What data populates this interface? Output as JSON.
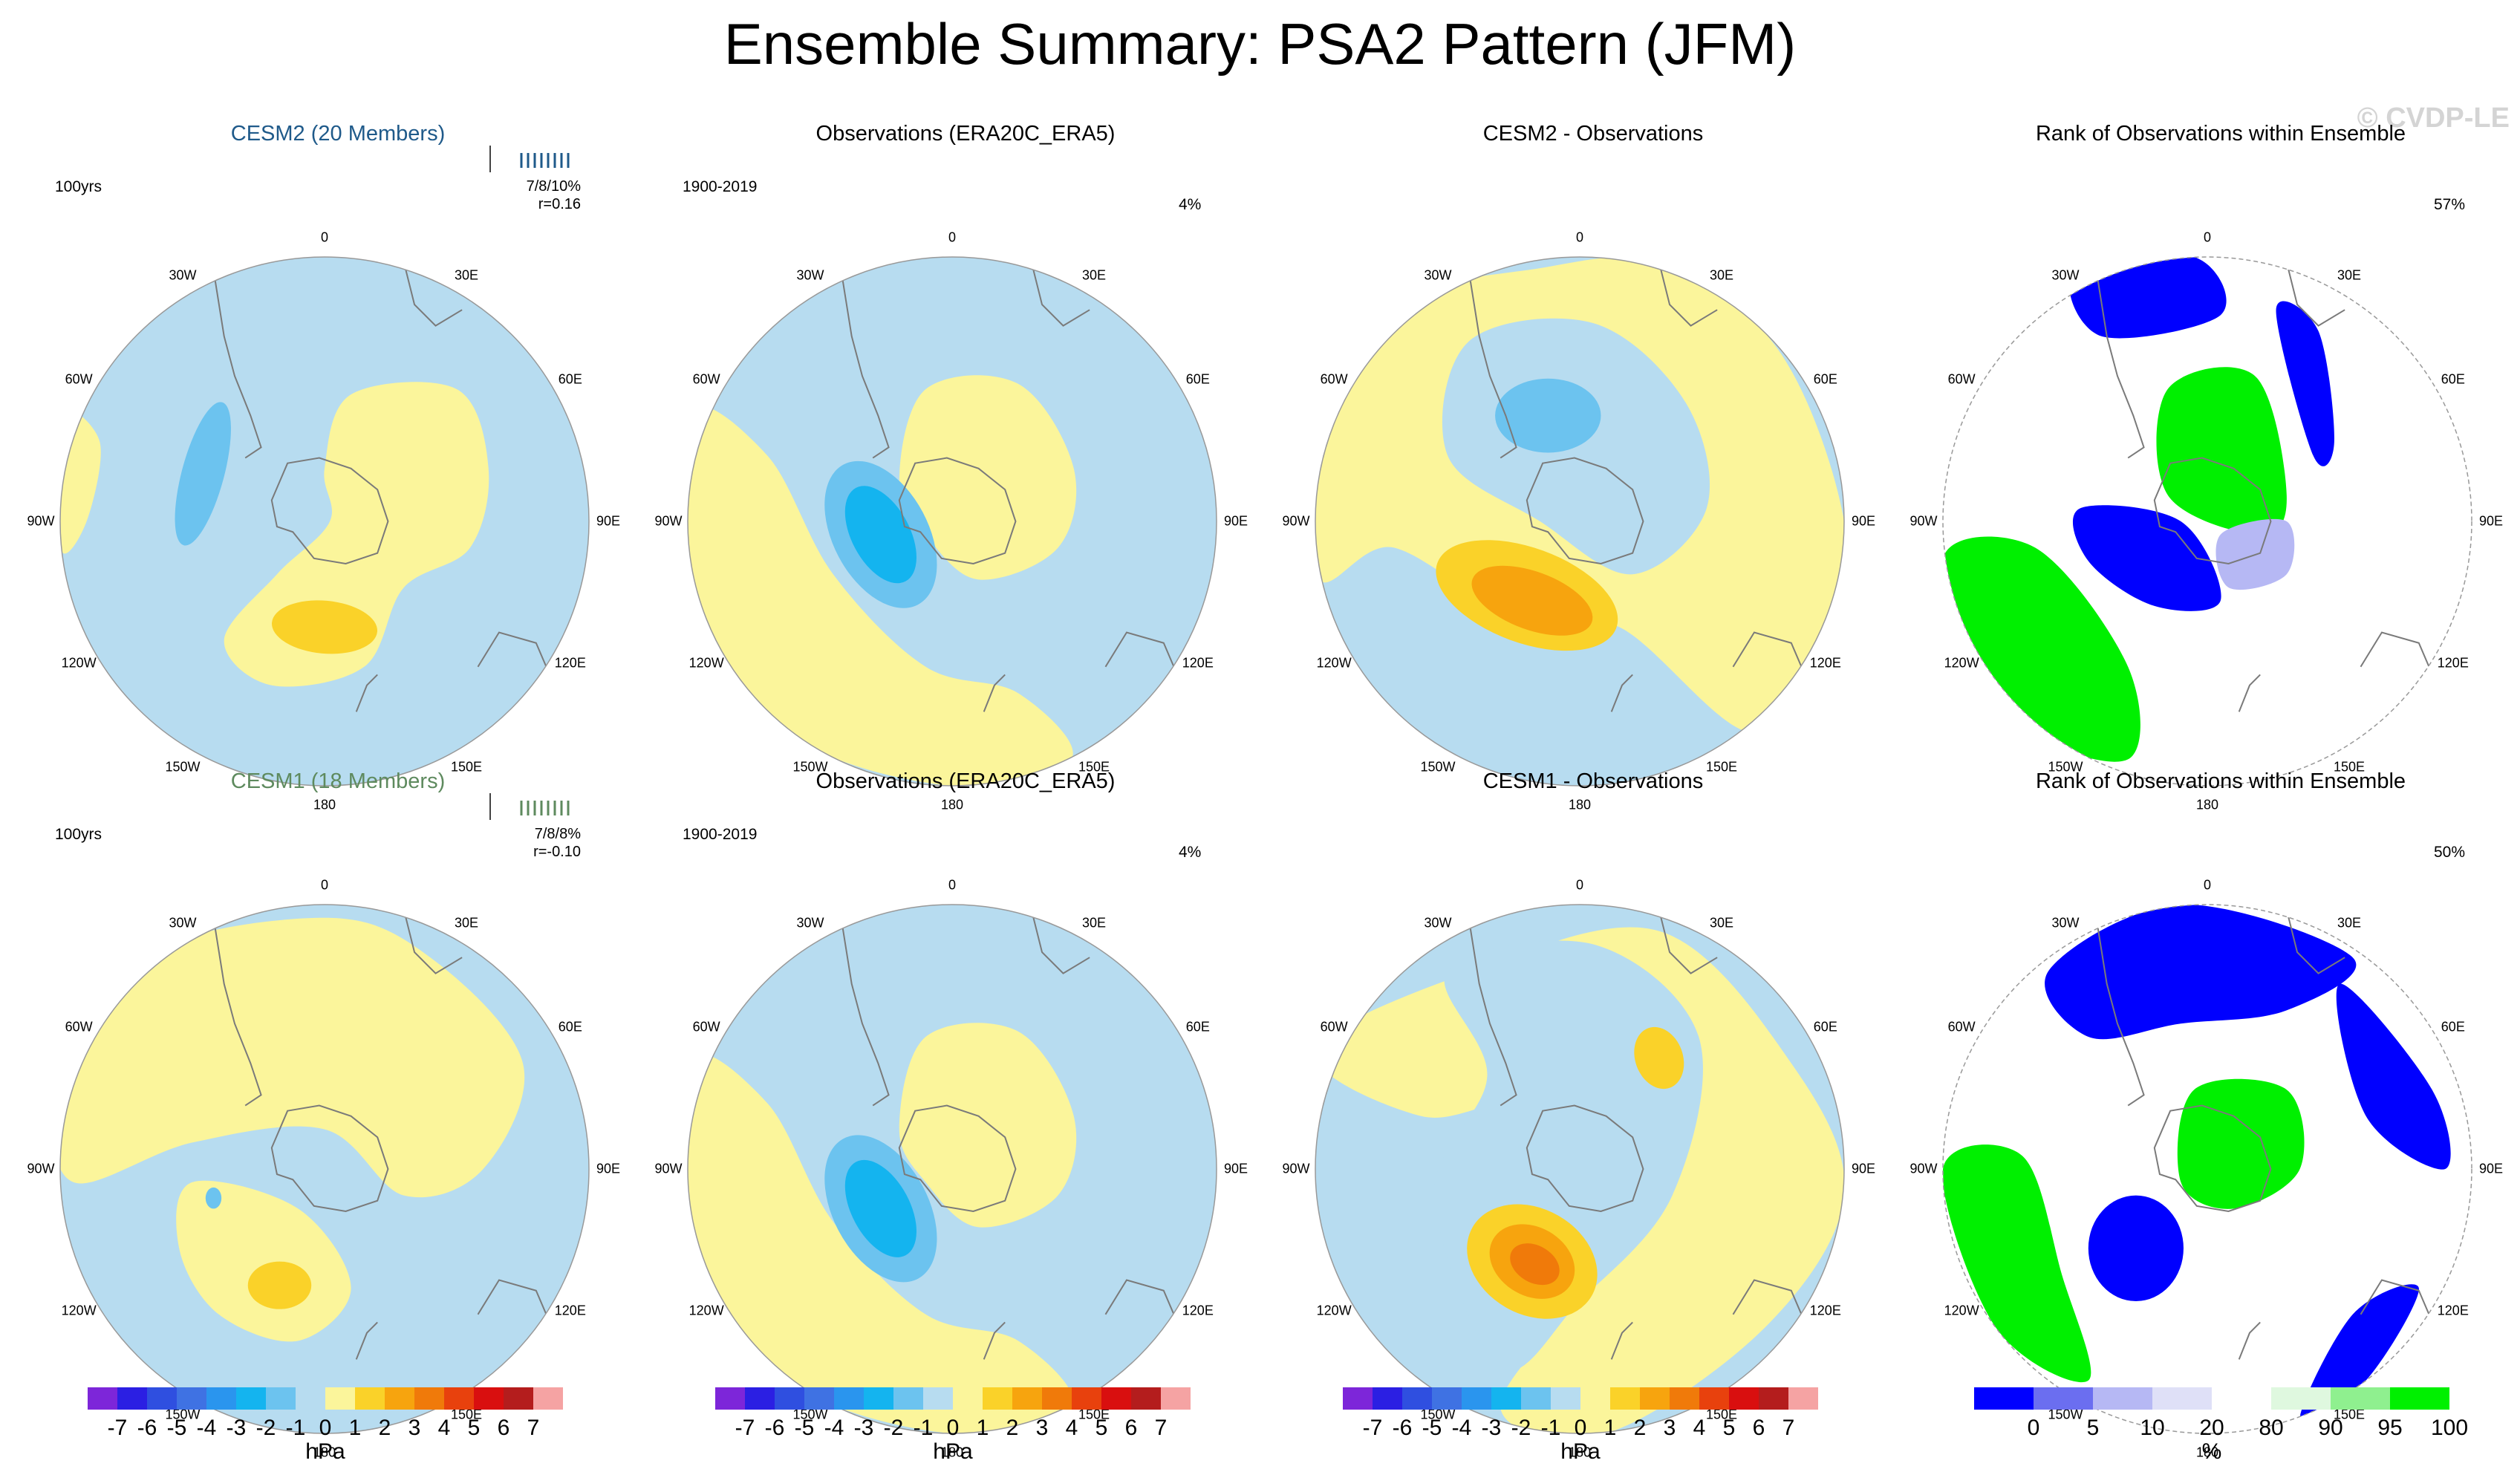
{
  "figure": {
    "title": "Ensemble Summary: PSA2 Pattern (JFM)",
    "watermark": "© CVDP-LE"
  },
  "colors": {
    "lightblue": "#b7dcf0",
    "pale_yellow": "#fbf59b",
    "yellow": "#fad229",
    "orange": "#f7a40e",
    "dark_orange": "#f07a0a",
    "mid_blue": "#6cc3ef",
    "cyan_blue": "#14b4ef",
    "rank_blue": "#0000ff",
    "rank_green": "#00f000",
    "rank_lavender": "#b6b8f4",
    "rank_pale_green": "#dff8df",
    "coast": "#7a7a7a"
  },
  "lon_labels": [
    "0",
    "30E",
    "60E",
    "90E",
    "120E",
    "150E",
    "180",
    "150W",
    "120W",
    "90W",
    "60W",
    "30W"
  ],
  "panels": [
    {
      "id": "cesm2",
      "title": "CESM2 (20 Members)",
      "left_corner": "100yrs",
      "right_corner": "",
      "stat_line1": "7/8/10%",
      "stat_line2": "r=0.16"
    },
    {
      "id": "obs1",
      "title": "Observations (ERA20C_ERA5)",
      "left_corner": "1900-2019",
      "right_corner": "4%"
    },
    {
      "id": "diff1",
      "title": "CESM2 - Observations",
      "left_corner": "",
      "right_corner": ""
    },
    {
      "id": "rank1",
      "title": "Rank of Observations within Ensemble",
      "left_corner": "",
      "right_corner": "57%"
    },
    {
      "id": "cesm1",
      "title": "CESM1 (18 Members)",
      "left_corner": "100yrs",
      "right_corner": "",
      "stat_line1": "7/8/8%",
      "stat_line2": "r=-0.10"
    },
    {
      "id": "obs2",
      "title": "Observations (ERA20C_ERA5)",
      "left_corner": "1900-2019",
      "right_corner": "4%"
    },
    {
      "id": "diff2",
      "title": "CESM1 - Observations",
      "left_corner": "",
      "right_corner": ""
    },
    {
      "id": "rank2",
      "title": "Rank of Observations within Ensemble",
      "left_corner": "",
      "right_corner": "50%"
    }
  ],
  "chart_data": [
    {
      "type": "heatmap",
      "description_role": "polar stereographic SLP pattern maps (hPa)",
      "panels": [
        "CESM2 (20 Members)",
        "Observations (ERA20C_ERA5)",
        "CESM2 - Observations",
        "CESM1 (18 Members)",
        "Observations (ERA20C_ERA5)",
        "CESM1 - Observations"
      ],
      "colorbar": {
        "unit": "hPa",
        "levels": [
          -7,
          -6,
          -5,
          -4,
          -3,
          -2,
          -1,
          0,
          1,
          2,
          3,
          4,
          5,
          6,
          7
        ],
        "tick_labels": [
          "-7",
          "-6",
          "-5",
          "-4",
          "-3",
          "-2",
          "-1",
          "0",
          "1",
          "2",
          "3",
          "4",
          "5",
          "6",
          "7"
        ],
        "colors": [
          "#7d26d9",
          "#2b1fe3",
          "#2f4fe0",
          "#3f72e3",
          "#2a95ee",
          "#14b4ef",
          "#6cc3ef",
          "#b7dcf0",
          "#fbf59b",
          "#fad229",
          "#f7a40e",
          "#f07a0a",
          "#e8410d",
          "#d90f0f",
          "#b41d1d",
          "#f5a3a3"
        ]
      }
    },
    {
      "type": "heatmap",
      "description_role": "rank of observations within ensemble (%)",
      "panels": [
        "Rank of Observations within Ensemble",
        "Rank of Observations within Ensemble"
      ],
      "colorbar": {
        "unit": "%",
        "levels": [
          0,
          5,
          10,
          20,
          80,
          90,
          95,
          100
        ],
        "tick_labels": [
          "0",
          "5",
          "10",
          "20",
          "80",
          "90",
          "95",
          "100"
        ],
        "colors": [
          "#0000ff",
          "#6b6ef0",
          "#b6b8f4",
          "#dfe0f7",
          "#ffffff",
          "#dff8df",
          "#8ff08f",
          "#00f000"
        ]
      }
    }
  ]
}
